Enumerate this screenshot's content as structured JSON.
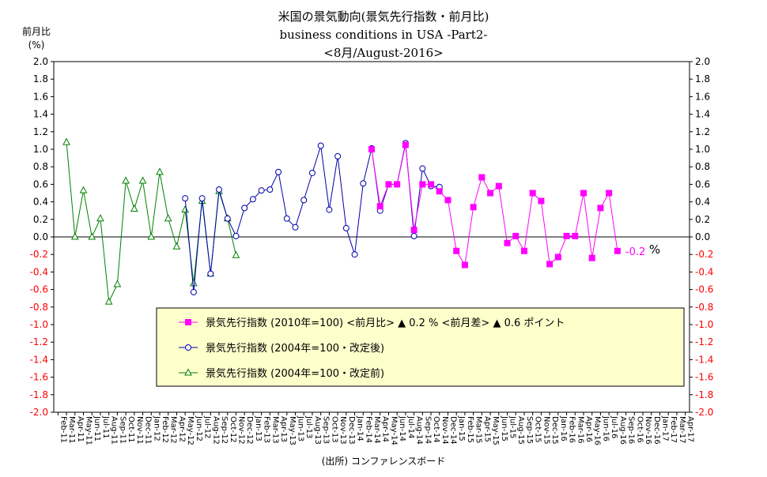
{
  "chart_data": {
    "type": "line",
    "title": "米国の景気動向(景気先行指数・前月比)",
    "subtitle": "business conditions in USA -Part2-",
    "period": "<8月/August-2016>",
    "ylabel": "前月比",
    "ylabel_unit": "(%)",
    "source": "(出所) コンファレンスボード",
    "ylim": [
      -2.0,
      2.0
    ],
    "ystep": 0.2,
    "grid": false,
    "legend_position": "bottom-center",
    "end_annotation": "-0.2",
    "end_annotation_unit": "%",
    "x_labels": [
      "Feb-11",
      "Mar-11",
      "Apr-11",
      "May-11",
      "Jun-11",
      "Jul-11",
      "Aug-11",
      "Sep-11",
      "Oct-11",
      "Nov-11",
      "Dec-11",
      "Jan-12",
      "Feb-12",
      "Mar-12",
      "Apr-12",
      "May-12",
      "Jun-12",
      "Jul-12",
      "Aug-12",
      "Sep-12",
      "Oct-12",
      "Nov-12",
      "Dec-12",
      "Jan-13",
      "Feb-13",
      "Mar-13",
      "Apr-13",
      "May-13",
      "Jun-13",
      "Jul-13",
      "Aug-13",
      "Sep-13",
      "Oct-13",
      "Nov-13",
      "Dec-13",
      "Jan-14",
      "Feb-14",
      "Mar-14",
      "Apr-14",
      "May-14",
      "Jun-14",
      "Jul-14",
      "Aug-14",
      "Sep-14",
      "Oct-14",
      "Nov-14",
      "Dec-14",
      "Jan-15",
      "Feb-15",
      "Mar-15",
      "Apr-15",
      "May-15",
      "Jun-15",
      "Jul-15",
      "Aug-15",
      "Sep-15",
      "Oct-15",
      "Nov-15",
      "Dec-15",
      "Jan-16",
      "Feb-16",
      "Mar-16",
      "Apr-16",
      "May-16",
      "Jun-16",
      "Jul-16",
      "Aug-16",
      "Sep-16",
      "Oct-16",
      "Nov-16",
      "Dec-16",
      "Jan-17",
      "Feb-17",
      "Mar-17",
      "Apr-17"
    ],
    "series": [
      {
        "name": "景気先行指数 (2010年=100)",
        "legend_extra": "<前月比> ▲ 0.2 % <前月差> ▲ 0.6 ポイント",
        "color": "#ff00ff",
        "marker": "square",
        "start_index": 37,
        "values": [
          1.0,
          0.35,
          0.6,
          0.6,
          1.05,
          0.08,
          0.6,
          0.6,
          0.52,
          0.42,
          -0.16,
          -0.32,
          0.34,
          0.68,
          0.5,
          0.58,
          -0.07,
          0.01,
          -0.16,
          0.5,
          0.41,
          -0.31,
          -0.23,
          0.01,
          0.01,
          0.5,
          -0.24,
          0.33,
          0.5,
          -0.16
        ]
      },
      {
        "name": "景気先行指数 (2004年=100・改定後)",
        "color": "#0000aa",
        "marker": "circle",
        "start_index": 15,
        "values": [
          0.44,
          -0.63,
          0.44,
          -0.42,
          0.54,
          0.21,
          0.01,
          0.33,
          0.43,
          0.53,
          0.54,
          0.74,
          0.21,
          0.11,
          0.42,
          0.73,
          1.04,
          0.31,
          0.92,
          0.1,
          -0.2,
          0.61,
          1.01,
          0.3,
          0.6,
          0.6,
          1.07,
          0.01,
          0.78,
          0.58,
          0.57
        ]
      },
      {
        "name": "景気先行指数 (2004年=100・改定前)",
        "color": "#008000",
        "marker": "triangle",
        "start_index": 1,
        "values": [
          1.08,
          0.0,
          0.53,
          0.0,
          0.21,
          -0.74,
          -0.54,
          0.64,
          0.32,
          0.64,
          0.0,
          0.74,
          0.21,
          -0.11,
          0.31,
          -0.53,
          0.41,
          -0.42,
          0.52,
          0.21,
          -0.21
        ]
      }
    ]
  }
}
